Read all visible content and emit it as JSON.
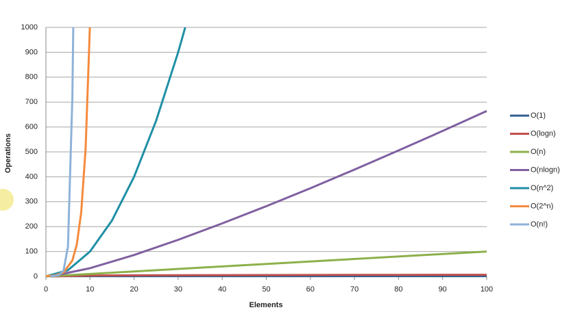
{
  "chart_data": {
    "type": "line",
    "x_label": "Elements",
    "y_label": "Operations",
    "xlim": [
      0,
      100
    ],
    "ylim": [
      0,
      1000
    ],
    "xticks": [
      0,
      10,
      20,
      30,
      40,
      50,
      60,
      70,
      80,
      90,
      100
    ],
    "yticks": [
      0,
      100,
      200,
      300,
      400,
      500,
      600,
      700,
      800,
      900,
      1000
    ],
    "grid": true,
    "legend": "right",
    "series": [
      {
        "name": "O(1)",
        "color": "#2f5f91",
        "x": [
          0,
          100
        ],
        "values": [
          1,
          1
        ]
      },
      {
        "name": "O(logn)",
        "color": "#c0504d",
        "x": [
          1,
          10,
          20,
          40,
          60,
          80,
          100
        ],
        "values": [
          0,
          3.3,
          4.3,
          5.3,
          5.9,
          6.3,
          6.6
        ]
      },
      {
        "name": "O(n)",
        "color": "#8cb04a",
        "x": [
          0,
          100
        ],
        "values": [
          0,
          100
        ]
      },
      {
        "name": "O(nlogn)",
        "color": "#7f5fa0",
        "x": [
          1,
          10,
          20,
          30,
          40,
          50,
          60,
          70,
          80,
          90,
          100
        ],
        "values": [
          0,
          33,
          86,
          147,
          213,
          282,
          354,
          429,
          506,
          584,
          664
        ]
      },
      {
        "name": "O(n^2)",
        "color": "#1f8fa6",
        "x": [
          0,
          5,
          10,
          15,
          20,
          25,
          30,
          31.6
        ],
        "values": [
          0,
          25,
          100,
          225,
          400,
          625,
          900,
          1000
        ]
      },
      {
        "name": "O(2^n)",
        "color": "#f58a3c",
        "x": [
          0,
          2,
          4,
          6,
          7,
          8,
          9,
          9.97
        ],
        "values": [
          1,
          4,
          16,
          64,
          128,
          256,
          512,
          1000
        ]
      },
      {
        "name": "O(n!)",
        "color": "#8eb2d8",
        "x": [
          1,
          2,
          3,
          4,
          5,
          6,
          6.2
        ],
        "values": [
          1,
          2,
          6,
          24,
          120,
          720,
          1000
        ]
      }
    ]
  }
}
